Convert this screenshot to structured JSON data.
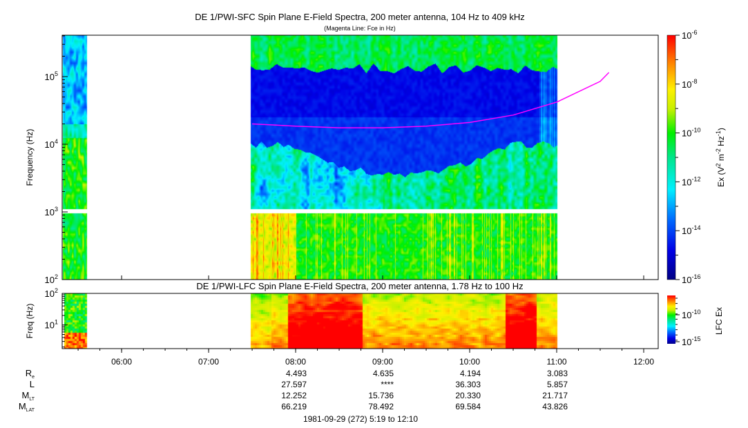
{
  "chart_data": [
    {
      "type": "heatmap",
      "title": "DE 1/PWI-SFC  Spin Plane E-Field Spectra, 200 meter antenna, 104 Hz to 409 kHz",
      "subtitle": "(Magenta Line: Fce in Hz)",
      "ylabel": "Frequency (Hz)",
      "yscale": "log",
      "ylim": [
        100,
        409000
      ],
      "ytick_labels": [
        "10^2",
        "10^3",
        "10^4",
        "10^5"
      ],
      "ytick_values": [
        100,
        1000,
        10000,
        100000
      ],
      "data_intervals_hours": [
        [
          5.32,
          5.6
        ],
        [
          7.48,
          11.0
        ]
      ],
      "colorbar": {
        "label": "Ex (V^2 m^-2 Hz^-1)",
        "scale": "log",
        "range": [
          1e-16,
          1e-06
        ],
        "tick_labels": [
          "10^-6",
          "10^-8",
          "10^-10",
          "10^-12",
          "10^-14",
          "10^-16"
        ],
        "tick_exponents": [
          -6,
          -8,
          -10,
          -12,
          -14,
          -16
        ]
      },
      "fce_line": {
        "color": "#ff00ff",
        "hours": [
          7.5,
          8.0,
          8.5,
          9.0,
          9.5,
          10.0,
          10.5,
          11.0,
          11.5,
          11.6
        ],
        "fce_hz": [
          20000,
          18500,
          17500,
          17500,
          18500,
          21000,
          27000,
          42000,
          85000,
          115000
        ]
      }
    },
    {
      "type": "heatmap",
      "title": "DE 1/PWI-LFC  Spin Plane E-Field Spectra, 200 meter antenna, 1.78 Hz to 100 Hz",
      "ylabel": "Freq (Hz)",
      "yscale": "log",
      "ylim": [
        1.78,
        100
      ],
      "ytick_labels": [
        "10^2",
        "10^1"
      ],
      "ytick_values": [
        100,
        10
      ],
      "data_intervals_hours": [
        [
          5.32,
          5.6
        ],
        [
          7.48,
          11.0
        ]
      ],
      "colorbar": {
        "label": "LFC Ex",
        "scale": "log",
        "tick_labels": [
          "10^-10",
          "10^-15"
        ],
        "tick_exponents": [
          -10,
          -15
        ]
      }
    }
  ],
  "x_axis": {
    "start_hour": 5.3167,
    "end_hour": 12.1667,
    "tick_labels": [
      "06:00",
      "07:00",
      "08:00",
      "09:00",
      "10:00",
      "11:00",
      "12:00"
    ],
    "tick_hours": [
      6,
      7,
      8,
      9,
      10,
      11,
      12
    ]
  },
  "ephemeris": {
    "rows": [
      {
        "label": "R",
        "sub": "e",
        "values": [
          "4.493",
          "4.635",
          "4.194",
          "3.083"
        ]
      },
      {
        "label": "L",
        "sub": "",
        "values": [
          "27.597",
          "****",
          "36.303",
          "5.857"
        ]
      },
      {
        "label": "M",
        "sub": "LT",
        "values": [
          "12.252",
          "15.736",
          "20.330",
          "21.717"
        ]
      },
      {
        "label": "M",
        "sub": "LAT",
        "values": [
          "66.219",
          "78.492",
          "69.584",
          "43.826"
        ]
      }
    ],
    "value_hours": [
      8,
      9,
      10,
      11
    ],
    "date_line": "1981-09-29 (272) 5:19 to 12:10"
  }
}
